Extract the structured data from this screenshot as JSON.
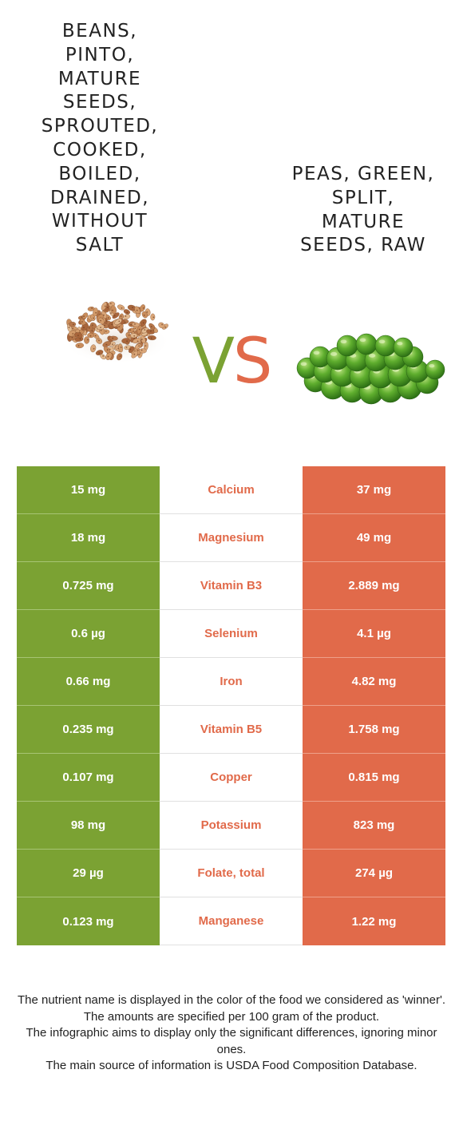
{
  "left_food": {
    "title": "Beans,\npinto,\nmature\nseeds,\nsprouted,\ncooked,\nboiled,\ndrained,\nwithout\nsalt",
    "color": "#7ba233"
  },
  "right_food": {
    "title": "Peas, green,\nsplit,\nmature\nseeds, raw",
    "color": "#e16a4a"
  },
  "vs": {
    "v": "V",
    "s": "S"
  },
  "rows": [
    {
      "left": "15 mg",
      "nutrient": "Calcium",
      "right": "37 mg"
    },
    {
      "left": "18 mg",
      "nutrient": "Magnesium",
      "right": "49 mg"
    },
    {
      "left": "0.725 mg",
      "nutrient": "Vitamin B3",
      "right": "2.889 mg"
    },
    {
      "left": "0.6 µg",
      "nutrient": "Selenium",
      "right": "4.1 µg"
    },
    {
      "left": "0.66 mg",
      "nutrient": "Iron",
      "right": "4.82 mg"
    },
    {
      "left": "0.235 mg",
      "nutrient": "Vitamin B5",
      "right": "1.758 mg"
    },
    {
      "left": "0.107 mg",
      "nutrient": "Copper",
      "right": "0.815 mg"
    },
    {
      "left": "98 mg",
      "nutrient": "Potassium",
      "right": "823 mg"
    },
    {
      "left": "29 µg",
      "nutrient": "Folate, total",
      "right": "274 µg"
    },
    {
      "left": "0.123 mg",
      "nutrient": "Manganese",
      "right": "1.22 mg"
    }
  ],
  "footer": {
    "line1": "The nutrient name is displayed in the color of the food we considered as 'winner'.",
    "line2": "The amounts are specified per 100 gram of the product.",
    "line3": "The infographic aims to display only the significant differences, ignoring minor ones.",
    "line4": "The main source of information is USDA Food Composition Database."
  }
}
